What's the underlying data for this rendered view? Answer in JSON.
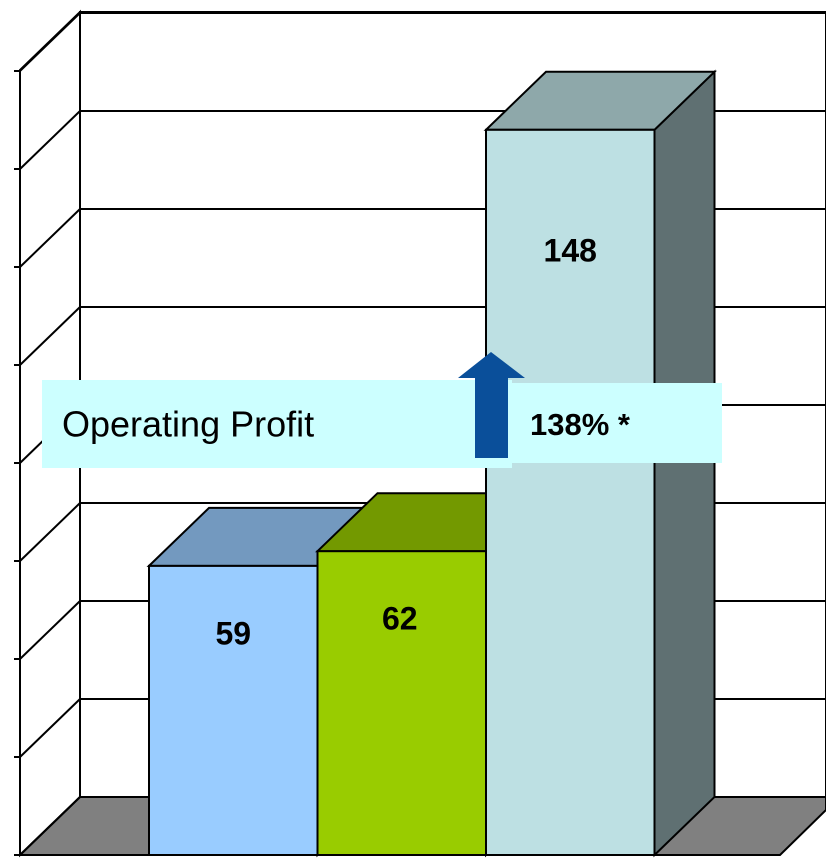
{
  "chart_data": {
    "type": "bar3d",
    "values": [
      59,
      62,
      148
    ],
    "colors": [
      "#99ccff",
      "#99cc00",
      "#bde0e3"
    ],
    "ylim": [
      0,
      160
    ],
    "yticks": [
      0,
      20,
      40,
      60,
      80,
      100,
      120,
      140,
      160
    ],
    "grid": true,
    "annotations": [
      "Operating Profit",
      "138% *"
    ]
  }
}
